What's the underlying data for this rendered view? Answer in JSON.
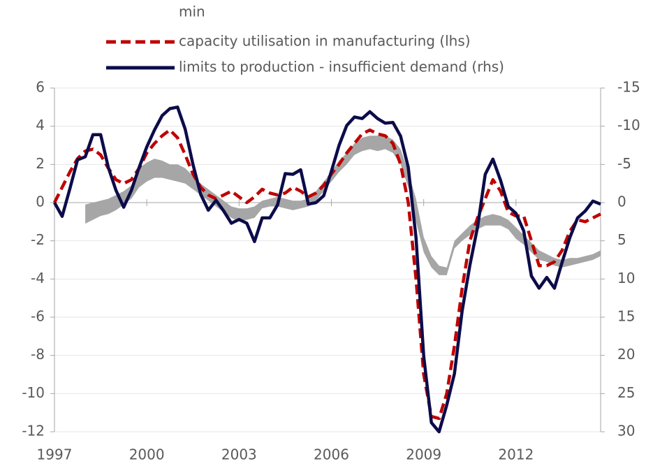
{
  "chart_data": {
    "type": "line",
    "x": [
      1997,
      1997.25,
      1997.5,
      1997.75,
      1998,
      1998.25,
      1998.5,
      1998.75,
      1999,
      1999.25,
      1999.5,
      1999.75,
      2000,
      2000.25,
      2000.5,
      2000.75,
      2001,
      2001.25,
      2001.5,
      2001.75,
      2002,
      2002.25,
      2002.5,
      2002.75,
      2003,
      2003.25,
      2003.5,
      2003.75,
      2004,
      2004.25,
      2004.5,
      2004.75,
      2005,
      2005.25,
      2005.5,
      2005.75,
      2006,
      2006.25,
      2006.5,
      2006.75,
      2007,
      2007.25,
      2007.5,
      2007.75,
      2008,
      2008.25,
      2008.5,
      2008.75,
      2009,
      2009.25,
      2009.5,
      2009.75,
      2010,
      2010.25,
      2010.5,
      2010.75,
      2011,
      2011.25,
      2011.5,
      2011.75,
      2012,
      2012.25,
      2012.5,
      2012.75,
      2013,
      2013.25,
      2013.5,
      2013.75,
      2014,
      2014.25,
      2014.5,
      2014.75
    ],
    "xlim": [
      1997,
      2014.75
    ],
    "xticks": [
      1997,
      2000,
      2003,
      2006,
      2009,
      2012
    ],
    "ylim": [
      -12,
      6
    ],
    "yticks": [
      6,
      4,
      2,
      0,
      -2,
      -4,
      -6,
      -8,
      -10,
      -12
    ],
    "y2lim": [
      30,
      -15
    ],
    "y2ticks": [
      -15,
      -10,
      -5,
      0,
      5,
      10,
      15,
      20,
      25,
      30
    ],
    "grid": true,
    "legend": "top",
    "series": [
      {
        "name": "min",
        "kind": "band",
        "color": "#a6a6a6",
        "values": [
          null,
          null,
          null,
          null,
          -1.1,
          -0.9,
          -0.7,
          -0.6,
          -0.4,
          -0.1,
          0.2,
          0.8,
          1.1,
          1.3,
          1.3,
          1.2,
          1.1,
          1.0,
          0.7,
          0.4,
          0.1,
          -0.2,
          -0.5,
          -0.8,
          -1.0,
          -0.9,
          -0.8,
          -0.3,
          -0.2,
          -0.2,
          -0.3,
          -0.4,
          -0.3,
          -0.2,
          0.1,
          0.6,
          1.1,
          1.6,
          2.0,
          2.5,
          2.7,
          2.8,
          2.7,
          2.8,
          2.6,
          2.0,
          0.8,
          -1.0,
          -2.6,
          -3.4,
          -3.8,
          -3.8,
          -2.4,
          -2.0,
          -1.7,
          -1.4,
          -1.2,
          -1.2,
          -1.2,
          -1.4,
          -1.9,
          -2.2,
          -2.6,
          -3.0,
          -3.1,
          -3.3,
          -3.4,
          -3.3,
          -3.2,
          -3.1,
          -3.0,
          -2.8
        ],
        "upper": [
          null,
          null,
          null,
          null,
          -0.1,
          0.0,
          0.1,
          0.2,
          0.4,
          0.6,
          0.9,
          1.8,
          2.1,
          2.3,
          2.2,
          2.0,
          2.0,
          1.8,
          1.4,
          1.0,
          0.7,
          0.4,
          0.1,
          -0.2,
          -0.3,
          -0.3,
          -0.2,
          0.1,
          0.2,
          0.3,
          0.2,
          0.1,
          0.1,
          0.2,
          0.6,
          1.1,
          1.6,
          2.2,
          2.6,
          3.1,
          3.4,
          3.5,
          3.5,
          3.5,
          3.3,
          2.8,
          1.6,
          0.2,
          -1.8,
          -2.8,
          -3.3,
          -3.4,
          -2.0,
          -1.6,
          -1.2,
          -0.9,
          -0.7,
          -0.6,
          -0.7,
          -0.9,
          -1.3,
          -1.7,
          -2.1,
          -2.5,
          -2.7,
          -2.9,
          -3.0,
          -2.9,
          -2.9,
          -2.8,
          -2.7,
          -2.5
        ]
      },
      {
        "name": "capacity utilisation in manufacturing (lhs)",
        "color": "#c00000",
        "dash": true,
        "values": [
          0,
          0.8,
          1.6,
          2.3,
          2.7,
          2.8,
          2.5,
          1.8,
          1.2,
          1.0,
          1.2,
          1.8,
          2.6,
          3.1,
          3.5,
          3.8,
          3.4,
          2.5,
          1.5,
          0.8,
          0.4,
          0.2,
          0.4,
          0.6,
          0.3,
          0.0,
          0.3,
          0.7,
          0.5,
          0.4,
          0.5,
          0.8,
          0.6,
          0.3,
          0.5,
          0.9,
          1.5,
          2.0,
          2.6,
          3.1,
          3.6,
          3.8,
          3.6,
          3.5,
          3.1,
          2.0,
          0.0,
          -4,
          -9,
          -11.2,
          -11.3,
          -10,
          -7.5,
          -4.5,
          -2.0,
          -0.8,
          0.2,
          1.2,
          0.6,
          -0.5,
          -0.7,
          -0.7,
          -2.0,
          -3.3,
          -3.3,
          -3.1,
          -2.5,
          -1.5,
          -0.9,
          -1.0,
          -0.8,
          -0.6
        ]
      },
      {
        "name": "limits to production - insufficient demand (rhs)",
        "color": "#0c0c4a",
        "axis": "y2",
        "values": [
          0,
          1.8,
          -1.8,
          -5.6,
          -6.0,
          -8.9,
          -8.9,
          -4.6,
          -1.6,
          0.6,
          -1.6,
          -4.6,
          -7.3,
          -9.5,
          -11.4,
          -12.3,
          -12.5,
          -9.6,
          -5.0,
          -1.1,
          1.0,
          -0.3,
          1.1,
          2.7,
          2.2,
          2.7,
          5.1,
          2.0,
          2.0,
          0.3,
          -3.8,
          -3.7,
          -4.3,
          0.2,
          0,
          -0.9,
          -4.1,
          -7.5,
          -10.1,
          -11.2,
          -11.0,
          -11.9,
          -11.0,
          -10.4,
          -10.5,
          -8.7,
          -4.6,
          4.6,
          20.1,
          28.8,
          30.0,
          26.5,
          22.4,
          14.2,
          8.2,
          3.2,
          -3.7,
          -5.7,
          -2.9,
          0.5,
          1.4,
          3.7,
          9.6,
          11.2,
          9.8,
          11.2,
          7.8,
          4.6,
          2.0,
          1.1,
          -0.2,
          0.2
        ]
      }
    ]
  }
}
